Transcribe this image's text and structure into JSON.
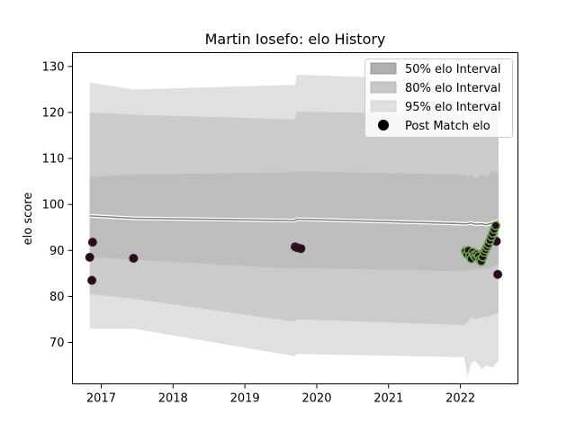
{
  "chart_data": {
    "type": "line",
    "title": "Martin Iosefo: elo History",
    "xlabel": "",
    "ylabel": "elo score",
    "xlim": [
      2016.6,
      2022.8
    ],
    "ylim": [
      61,
      133
    ],
    "x_ticks": [
      2017,
      2018,
      2019,
      2020,
      2021,
      2022
    ],
    "y_ticks": [
      70,
      80,
      90,
      100,
      110,
      120,
      130
    ],
    "legend": {
      "position": "top-right",
      "entries": [
        "50% elo Interval",
        "80% elo Interval",
        "95% elo Interval",
        "Post Match elo"
      ]
    },
    "colors": {
      "band95": "#e0e0e0",
      "band80": "#cbcbcb",
      "band50": "#bdbdbd",
      "mean_line": "#808080",
      "mean_highlight": "#ffffff",
      "point_fill": "#2a0a1e",
      "point_edge_recent": "#6aa84f"
    },
    "bands": {
      "x": [
        2016.84,
        2017.45,
        2019.7,
        2019.72,
        2022.05,
        2022.1,
        2022.15,
        2022.2,
        2022.3,
        2022.35,
        2022.45,
        2022.53
      ],
      "upper95": [
        126.5,
        125.0,
        126.0,
        128.2,
        127.0,
        125.0,
        127.5,
        125.5,
        127.5,
        126.0,
        127.0,
        127.5
      ],
      "lower95": [
        73.0,
        73.0,
        67.0,
        67.5,
        66.8,
        62.5,
        65.5,
        66.0,
        64.2,
        65.0,
        64.5,
        66.0
      ],
      "upper80": [
        120.0,
        119.5,
        118.5,
        120.2,
        119.5,
        117.5,
        119.5,
        118.5,
        119.5,
        118.5,
        119.5,
        119.5
      ],
      "lower80": [
        80.5,
        79.5,
        74.5,
        75.0,
        73.8,
        74.5,
        75.5,
        75.0,
        75.5,
        75.5,
        76.0,
        76.5
      ],
      "upper50": [
        106.0,
        106.5,
        107.0,
        107.2,
        106.5,
        106.0,
        106.5,
        105.5,
        106.5,
        106.0,
        107.0,
        107.0
      ],
      "lower50": [
        88.5,
        88.0,
        86.0,
        86.2,
        85.5,
        85.5,
        86.0,
        85.8,
        86.0,
        86.0,
        86.5,
        87.0
      ],
      "mean": [
        97.5,
        97.0,
        96.5,
        96.8,
        95.8,
        95.8,
        96.0,
        95.7,
        95.8,
        95.6,
        96.0,
        96.5
      ]
    },
    "points_early": [
      {
        "x": 2016.84,
        "y": 88.5
      },
      {
        "x": 2016.87,
        "y": 83.5
      },
      {
        "x": 2016.88,
        "y": 91.8
      },
      {
        "x": 2017.45,
        "y": 88.3
      },
      {
        "x": 2019.7,
        "y": 90.8
      },
      {
        "x": 2019.73,
        "y": 90.6
      },
      {
        "x": 2019.78,
        "y": 90.4
      },
      {
        "x": 2022.5,
        "y": 92.0
      },
      {
        "x": 2022.52,
        "y": 84.8
      }
    ],
    "points_recent": [
      {
        "x": 2022.07,
        "y": 89.8
      },
      {
        "x": 2022.09,
        "y": 89.2
      },
      {
        "x": 2022.11,
        "y": 90.0
      },
      {
        "x": 2022.13,
        "y": 88.8
      },
      {
        "x": 2022.15,
        "y": 88.2
      },
      {
        "x": 2022.17,
        "y": 89.6
      },
      {
        "x": 2022.19,
        "y": 89.0
      },
      {
        "x": 2022.21,
        "y": 88.6
      },
      {
        "x": 2022.23,
        "y": 89.2
      },
      {
        "x": 2022.25,
        "y": 88.8
      },
      {
        "x": 2022.27,
        "y": 88.0
      },
      {
        "x": 2022.29,
        "y": 87.6
      },
      {
        "x": 2022.31,
        "y": 88.6
      },
      {
        "x": 2022.33,
        "y": 89.6
      },
      {
        "x": 2022.35,
        "y": 90.2
      },
      {
        "x": 2022.37,
        "y": 90.8
      },
      {
        "x": 2022.39,
        "y": 91.4
      },
      {
        "x": 2022.41,
        "y": 92.2
      },
      {
        "x": 2022.43,
        "y": 93.0
      },
      {
        "x": 2022.45,
        "y": 93.8
      },
      {
        "x": 2022.47,
        "y": 94.6
      },
      {
        "x": 2022.49,
        "y": 95.4
      }
    ]
  }
}
